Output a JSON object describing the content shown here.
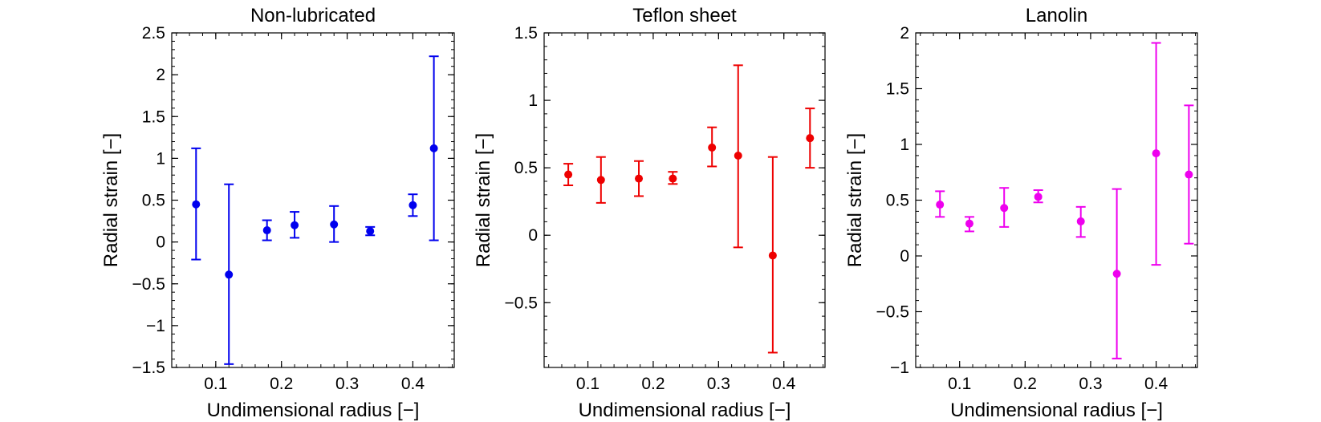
{
  "chart_data": [
    {
      "type": "scatter",
      "title": "Non-lubricated",
      "xlabel": "Undimensional radius [−]",
      "ylabel": "Radial strain [−]",
      "xlim": [
        0.033,
        0.463
      ],
      "ylim": [
        -1.5,
        2.5
      ],
      "xticks": [
        0.1,
        0.2,
        0.3,
        0.4
      ],
      "xtick_labels": [
        "0.1",
        "0.2",
        "0.3",
        "0.4"
      ],
      "yticks": [
        -1.5,
        -1,
        -0.5,
        0,
        0.5,
        1,
        1.5,
        2,
        2.5
      ],
      "ytick_labels": [
        "−1.5",
        "−1",
        "−0.5",
        "0",
        "0.5",
        "1",
        "1.5",
        "2",
        "2.5"
      ],
      "color": "#0000ee",
      "grid": false,
      "points": [
        {
          "x": 0.07,
          "y": 0.45,
          "err_low": -0.21,
          "err_high": 1.12
        },
        {
          "x": 0.12,
          "y": -0.39,
          "err_low": -1.46,
          "err_high": 0.69
        },
        {
          "x": 0.178,
          "y": 0.14,
          "err_low": 0.02,
          "err_high": 0.26
        },
        {
          "x": 0.22,
          "y": 0.2,
          "err_low": 0.05,
          "err_high": 0.36
        },
        {
          "x": 0.28,
          "y": 0.21,
          "err_low": 0.0,
          "err_high": 0.43
        },
        {
          "x": 0.335,
          "y": 0.13,
          "err_low": 0.08,
          "err_high": 0.18
        },
        {
          "x": 0.4,
          "y": 0.44,
          "err_low": 0.31,
          "err_high": 0.57
        },
        {
          "x": 0.432,
          "y": 1.12,
          "err_low": 0.02,
          "err_high": 2.22
        }
      ]
    },
    {
      "type": "scatter",
      "title": "Teflon sheet",
      "xlabel": "Undimensional radius [−]",
      "ylabel": "Radial strain [−]",
      "xlim": [
        0.033,
        0.463
      ],
      "ylim": [
        -0.98,
        1.5
      ],
      "xticks": [
        0.1,
        0.2,
        0.3,
        0.4
      ],
      "xtick_labels": [
        "0.1",
        "0.2",
        "0.3",
        "0.4"
      ],
      "yticks": [
        -0.5,
        0,
        0.5,
        1,
        1.5
      ],
      "ytick_labels": [
        "−0.5",
        "0",
        "0.5",
        "1",
        "1.5"
      ],
      "color": "#ee0000",
      "grid": false,
      "points": [
        {
          "x": 0.07,
          "y": 0.45,
          "err_low": 0.37,
          "err_high": 0.53
        },
        {
          "x": 0.12,
          "y": 0.41,
          "err_low": 0.24,
          "err_high": 0.58
        },
        {
          "x": 0.178,
          "y": 0.42,
          "err_low": 0.29,
          "err_high": 0.55
        },
        {
          "x": 0.23,
          "y": 0.42,
          "err_low": 0.38,
          "err_high": 0.47
        },
        {
          "x": 0.29,
          "y": 0.65,
          "err_low": 0.51,
          "err_high": 0.8
        },
        {
          "x": 0.33,
          "y": 0.59,
          "err_low": -0.09,
          "err_high": 1.26
        },
        {
          "x": 0.383,
          "y": -0.15,
          "err_low": -0.87,
          "err_high": 0.58
        },
        {
          "x": 0.44,
          "y": 0.72,
          "err_low": 0.5,
          "err_high": 0.94
        }
      ]
    },
    {
      "type": "scatter",
      "title": "Lanolin",
      "xlabel": "Undimensional radius [−]",
      "ylabel": "Radial strain [−]",
      "xlim": [
        0.033,
        0.463
      ],
      "ylim": [
        -1,
        2
      ],
      "xticks": [
        0.1,
        0.2,
        0.3,
        0.4
      ],
      "xtick_labels": [
        "0.1",
        "0.2",
        "0.3",
        "0.4"
      ],
      "yticks": [
        -1,
        -0.5,
        0,
        0.5,
        1,
        1.5,
        2
      ],
      "ytick_labels": [
        "−1",
        "−0.5",
        "0",
        "0.5",
        "1",
        "1.5",
        "2"
      ],
      "color": "#ee00ee",
      "grid": false,
      "points": [
        {
          "x": 0.07,
          "y": 0.46,
          "err_low": 0.35,
          "err_high": 0.58
        },
        {
          "x": 0.115,
          "y": 0.29,
          "err_low": 0.22,
          "err_high": 0.35
        },
        {
          "x": 0.168,
          "y": 0.43,
          "err_low": 0.26,
          "err_high": 0.61
        },
        {
          "x": 0.22,
          "y": 0.53,
          "err_low": 0.48,
          "err_high": 0.59
        },
        {
          "x": 0.285,
          "y": 0.31,
          "err_low": 0.17,
          "err_high": 0.44
        },
        {
          "x": 0.34,
          "y": -0.16,
          "err_low": -0.92,
          "err_high": 0.6
        },
        {
          "x": 0.4,
          "y": 0.92,
          "err_low": -0.08,
          "err_high": 1.91
        },
        {
          "x": 0.45,
          "y": 0.73,
          "err_low": 0.11,
          "err_high": 1.35
        }
      ]
    }
  ]
}
